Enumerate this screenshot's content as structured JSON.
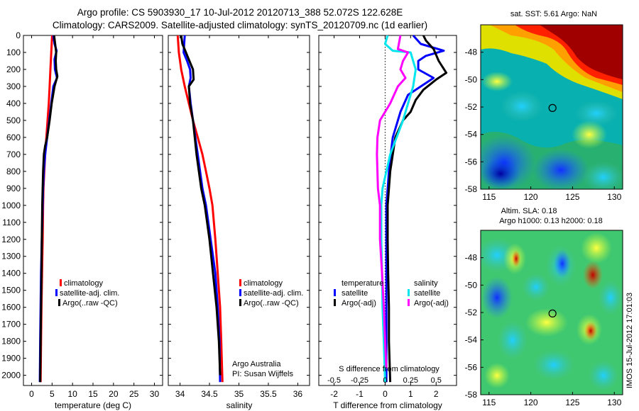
{
  "header": {
    "title_line1": "Argo profile: CS 5903930_17 10-Jul-2012 20120713_388 52.072S 122.628E",
    "title_line2": "Climatology: CARS2009. Satellite-adjusted climatology: synTS_20120709.nc (1d earlier)"
  },
  "colors": {
    "climatology": "#ff0000",
    "satellite_adj": "#0000ff",
    "argo": "#000000",
    "salinity_satellite": "#00e5ee",
    "salinity_argo": "#ff00ff"
  },
  "depth_axis": {
    "ticks": [
      0,
      100,
      200,
      300,
      400,
      500,
      600,
      700,
      800,
      900,
      1000,
      1100,
      1200,
      1300,
      1400,
      1500,
      1600,
      1700,
      1800,
      1900,
      2000
    ],
    "ylim": [
      0,
      2060
    ]
  },
  "chart_data": [
    {
      "type": "line",
      "id": "temperature",
      "xlabel": "temperature (deg C)",
      "xlim": [
        -2,
        32
      ],
      "xticks": [
        0,
        5,
        10,
        15,
        20,
        25,
        30
      ],
      "legend": [
        "climatology",
        "satellite-adj. clim.",
        "Argo(..raw -QC)"
      ],
      "series": [
        {
          "name": "climatology",
          "color": "#ff0000",
          "points": [
            [
              5.0,
              0
            ],
            [
              4.9,
              50
            ],
            [
              4.8,
              100
            ],
            [
              4.6,
              200
            ],
            [
              4.4,
              300
            ],
            [
              4.2,
              400
            ],
            [
              3.9,
              500
            ],
            [
              3.6,
              600
            ],
            [
              3.3,
              700
            ],
            [
              3.1,
              800
            ],
            [
              2.9,
              900
            ],
            [
              2.8,
              1000
            ],
            [
              2.7,
              1200
            ],
            [
              2.55,
              1400
            ],
            [
              2.4,
              1600
            ],
            [
              2.3,
              1800
            ],
            [
              2.2,
              2040
            ]
          ]
        },
        {
          "name": "satellite-adj. clim.",
          "color": "#0000ff",
          "points": [
            [
              5.3,
              0
            ],
            [
              5.6,
              50
            ],
            [
              6.1,
              90
            ],
            [
              5.6,
              140
            ],
            [
              5.7,
              200
            ],
            [
              6.2,
              250
            ],
            [
              5.3,
              300
            ],
            [
              4.8,
              400
            ],
            [
              4.3,
              500
            ],
            [
              3.8,
              600
            ],
            [
              3.3,
              700
            ],
            [
              3.0,
              800
            ],
            [
              2.8,
              900
            ],
            [
              2.7,
              1000
            ],
            [
              2.5,
              1200
            ],
            [
              2.3,
              1400
            ],
            [
              2.2,
              1600
            ],
            [
              2.1,
              1800
            ],
            [
              2.0,
              2040
            ]
          ]
        },
        {
          "name": "Argo(..raw -QC)",
          "color": "#000000",
          "points": [
            [
              5.5,
              0
            ],
            [
              5.8,
              60
            ],
            [
              6.0,
              100
            ],
            [
              5.9,
              150
            ],
            [
              6.0,
              200
            ],
            [
              6.3,
              240
            ],
            [
              5.6,
              300
            ],
            [
              4.9,
              400
            ],
            [
              4.4,
              500
            ],
            [
              3.8,
              600
            ],
            [
              3.3,
              650
            ],
            [
              3.0,
              700
            ],
            [
              2.8,
              800
            ],
            [
              2.7,
              900
            ],
            [
              2.6,
              1000
            ],
            [
              2.5,
              1200
            ],
            [
              2.4,
              1400
            ],
            [
              2.3,
              1600
            ],
            [
              2.2,
              1800
            ],
            [
              2.1,
              2040
            ]
          ]
        }
      ]
    },
    {
      "type": "line",
      "id": "salinity",
      "xlabel": "salinity",
      "xlim": [
        33.8,
        36.2
      ],
      "xticks": [
        34,
        34.5,
        35,
        35.5,
        36
      ],
      "legend": [
        "climatology",
        "satellite-adj. clim.",
        "Argo(..raw -QC)"
      ],
      "annotation": [
        "Argo Australia",
        "PI: Susan Wijffels"
      ],
      "series": [
        {
          "name": "climatology",
          "color": "#ff0000",
          "points": [
            [
              33.96,
              0
            ],
            [
              33.98,
              100
            ],
            [
              34.02,
              200
            ],
            [
              34.08,
              300
            ],
            [
              34.15,
              400
            ],
            [
              34.22,
              500
            ],
            [
              34.3,
              600
            ],
            [
              34.38,
              700
            ],
            [
              34.44,
              800
            ],
            [
              34.5,
              900
            ],
            [
              34.55,
              1000
            ],
            [
              34.6,
              1200
            ],
            [
              34.64,
              1400
            ],
            [
              34.68,
              1600
            ],
            [
              34.7,
              1800
            ],
            [
              34.72,
              2040
            ]
          ]
        },
        {
          "name": "satellite-adj. clim.",
          "color": "#0000ff",
          "points": [
            [
              34.08,
              0
            ],
            [
              34.07,
              50
            ],
            [
              34.06,
              100
            ],
            [
              34.12,
              150
            ],
            [
              34.17,
              200
            ],
            [
              34.18,
              250
            ],
            [
              34.15,
              300
            ],
            [
              34.18,
              400
            ],
            [
              34.22,
              500
            ],
            [
              34.26,
              600
            ],
            [
              34.3,
              700
            ],
            [
              34.34,
              800
            ],
            [
              34.38,
              900
            ],
            [
              34.44,
              1000
            ],
            [
              34.52,
              1200
            ],
            [
              34.6,
              1400
            ],
            [
              34.64,
              1600
            ],
            [
              34.67,
              1800
            ],
            [
              34.68,
              2040
            ]
          ]
        },
        {
          "name": "Argo(..raw -QC)",
          "color": "#000000",
          "points": [
            [
              34.02,
              0
            ],
            [
              34.04,
              50
            ],
            [
              34.1,
              100
            ],
            [
              34.16,
              150
            ],
            [
              34.22,
              200
            ],
            [
              34.23,
              260
            ],
            [
              34.15,
              300
            ],
            [
              34.17,
              400
            ],
            [
              34.22,
              500
            ],
            [
              34.25,
              600
            ],
            [
              34.28,
              700
            ],
            [
              34.32,
              800
            ],
            [
              34.36,
              900
            ],
            [
              34.42,
              1000
            ],
            [
              34.5,
              1200
            ],
            [
              34.56,
              1400
            ],
            [
              34.62,
              1600
            ],
            [
              34.66,
              1800
            ],
            [
              34.68,
              2000
            ]
          ]
        }
      ]
    },
    {
      "type": "line",
      "id": "difference",
      "xlabel": "T difference from climatology",
      "xlabel_top": "S difference from climatology",
      "xlim": [
        -2.6,
        2.8
      ],
      "xticks": [
        -2,
        -1,
        0,
        1,
        2
      ],
      "xticks_top_labels": [
        "-0.5",
        "-0.25",
        "0",
        "0.25",
        "0.5"
      ],
      "xticks_top_positions": [
        -2,
        -1,
        0,
        1,
        2
      ],
      "legend_left_title": "temperature",
      "legend_right_title": "salinity",
      "legend": [
        "satellite",
        "Argo(-adj)",
        "satellite",
        "Argo(-adj)"
      ],
      "series": [
        {
          "name": "temperature satellite",
          "color": "#0000ff",
          "points": [
            [
              1.1,
              0
            ],
            [
              1.4,
              50
            ],
            [
              2.3,
              90
            ],
            [
              1.6,
              120
            ],
            [
              1.3,
              150
            ],
            [
              1.3,
              200
            ],
            [
              1.9,
              250
            ],
            [
              0.9,
              350
            ],
            [
              0.6,
              450
            ],
            [
              0.5,
              500
            ],
            [
              0.3,
              600
            ],
            [
              0.22,
              700
            ],
            [
              0.15,
              800
            ],
            [
              0.1,
              900
            ],
            [
              0.05,
              1000
            ],
            [
              0.05,
              1200
            ],
            [
              0.05,
              1400
            ],
            [
              0.05,
              1600
            ],
            [
              0.05,
              1800
            ],
            [
              0.05,
              2040
            ]
          ]
        },
        {
          "name": "temperature Argo(-adj)",
          "color": "#000000",
          "points": [
            [
              1.5,
              0
            ],
            [
              1.6,
              30
            ],
            [
              1.9,
              80
            ],
            [
              2.1,
              150
            ],
            [
              2.4,
              220
            ],
            [
              2.0,
              260
            ],
            [
              1.5,
              320
            ],
            [
              1.2,
              380
            ],
            [
              1.0,
              450
            ],
            [
              0.7,
              500
            ],
            [
              0.4,
              600
            ],
            [
              0.3,
              700
            ],
            [
              0.2,
              800
            ],
            [
              0.15,
              900
            ],
            [
              0.1,
              1000
            ],
            [
              0.1,
              1200
            ],
            [
              0.12,
              1400
            ],
            [
              0.15,
              1600
            ],
            [
              0.15,
              1800
            ],
            [
              0.2,
              2040
            ]
          ]
        },
        {
          "name": "salinity satellite",
          "color": "#00e5ee",
          "points": [
            [
              0.1,
              0
            ],
            [
              0.0,
              50
            ],
            [
              0.3,
              90
            ],
            [
              1.0,
              100
            ],
            [
              1.2,
              200
            ],
            [
              1.1,
              300
            ],
            [
              0.9,
              400
            ],
            [
              0.7,
              500
            ],
            [
              0.45,
              600
            ],
            [
              0.2,
              700
            ],
            [
              0.05,
              800
            ],
            [
              -0.1,
              900
            ],
            [
              -0.15,
              1000
            ],
            [
              -0.15,
              1200
            ],
            [
              -0.12,
              1400
            ],
            [
              -0.1,
              1600
            ],
            [
              -0.05,
              1800
            ],
            [
              0.0,
              2040
            ]
          ]
        },
        {
          "name": "salinity Argo(-adj)",
          "color": "#ff00ff",
          "points": [
            [
              0.6,
              0
            ],
            [
              0.5,
              80
            ],
            [
              0.9,
              100
            ],
            [
              0.7,
              150
            ],
            [
              0.6,
              200
            ],
            [
              0.8,
              250
            ],
            [
              0.5,
              300
            ],
            [
              0.2,
              400
            ],
            [
              -0.2,
              500
            ],
            [
              -0.3,
              600
            ],
            [
              -0.32,
              700
            ],
            [
              -0.3,
              800
            ],
            [
              -0.28,
              900
            ],
            [
              -0.2,
              1000
            ],
            [
              -0.2,
              1200
            ],
            [
              -0.12,
              1400
            ],
            [
              -0.05,
              1600
            ],
            [
              0.0,
              1800
            ],
            [
              0.05,
              1960
            ]
          ]
        }
      ]
    },
    {
      "type": "heatmap",
      "id": "sst-map",
      "title": "sat. SST: 5.61  Argo: NaN",
      "xlim": [
        114,
        131
      ],
      "ylim": [
        -58,
        -46
      ],
      "xticks": [
        115,
        120,
        125,
        130
      ],
      "yticks": [
        -48,
        -50,
        -52,
        -54,
        -56,
        -58
      ],
      "marker": [
        122.6,
        -52.07
      ]
    },
    {
      "type": "heatmap",
      "id": "sla-map",
      "title_line1": "Altim. SLA: 0.18",
      "title_line2": "Argo h1000: 0.13  h2000: 0.18",
      "xlim": [
        114,
        131
      ],
      "ylim": [
        -58,
        -46
      ],
      "xticks": [
        115,
        120,
        125,
        130
      ],
      "yticks": [
        -48,
        -50,
        -52,
        -54,
        -56,
        -58
      ],
      "marker": [
        122.6,
        -52.07
      ]
    }
  ],
  "footer": {
    "timestamp": "IMOS 15-Jul-2012 17:01:03"
  }
}
